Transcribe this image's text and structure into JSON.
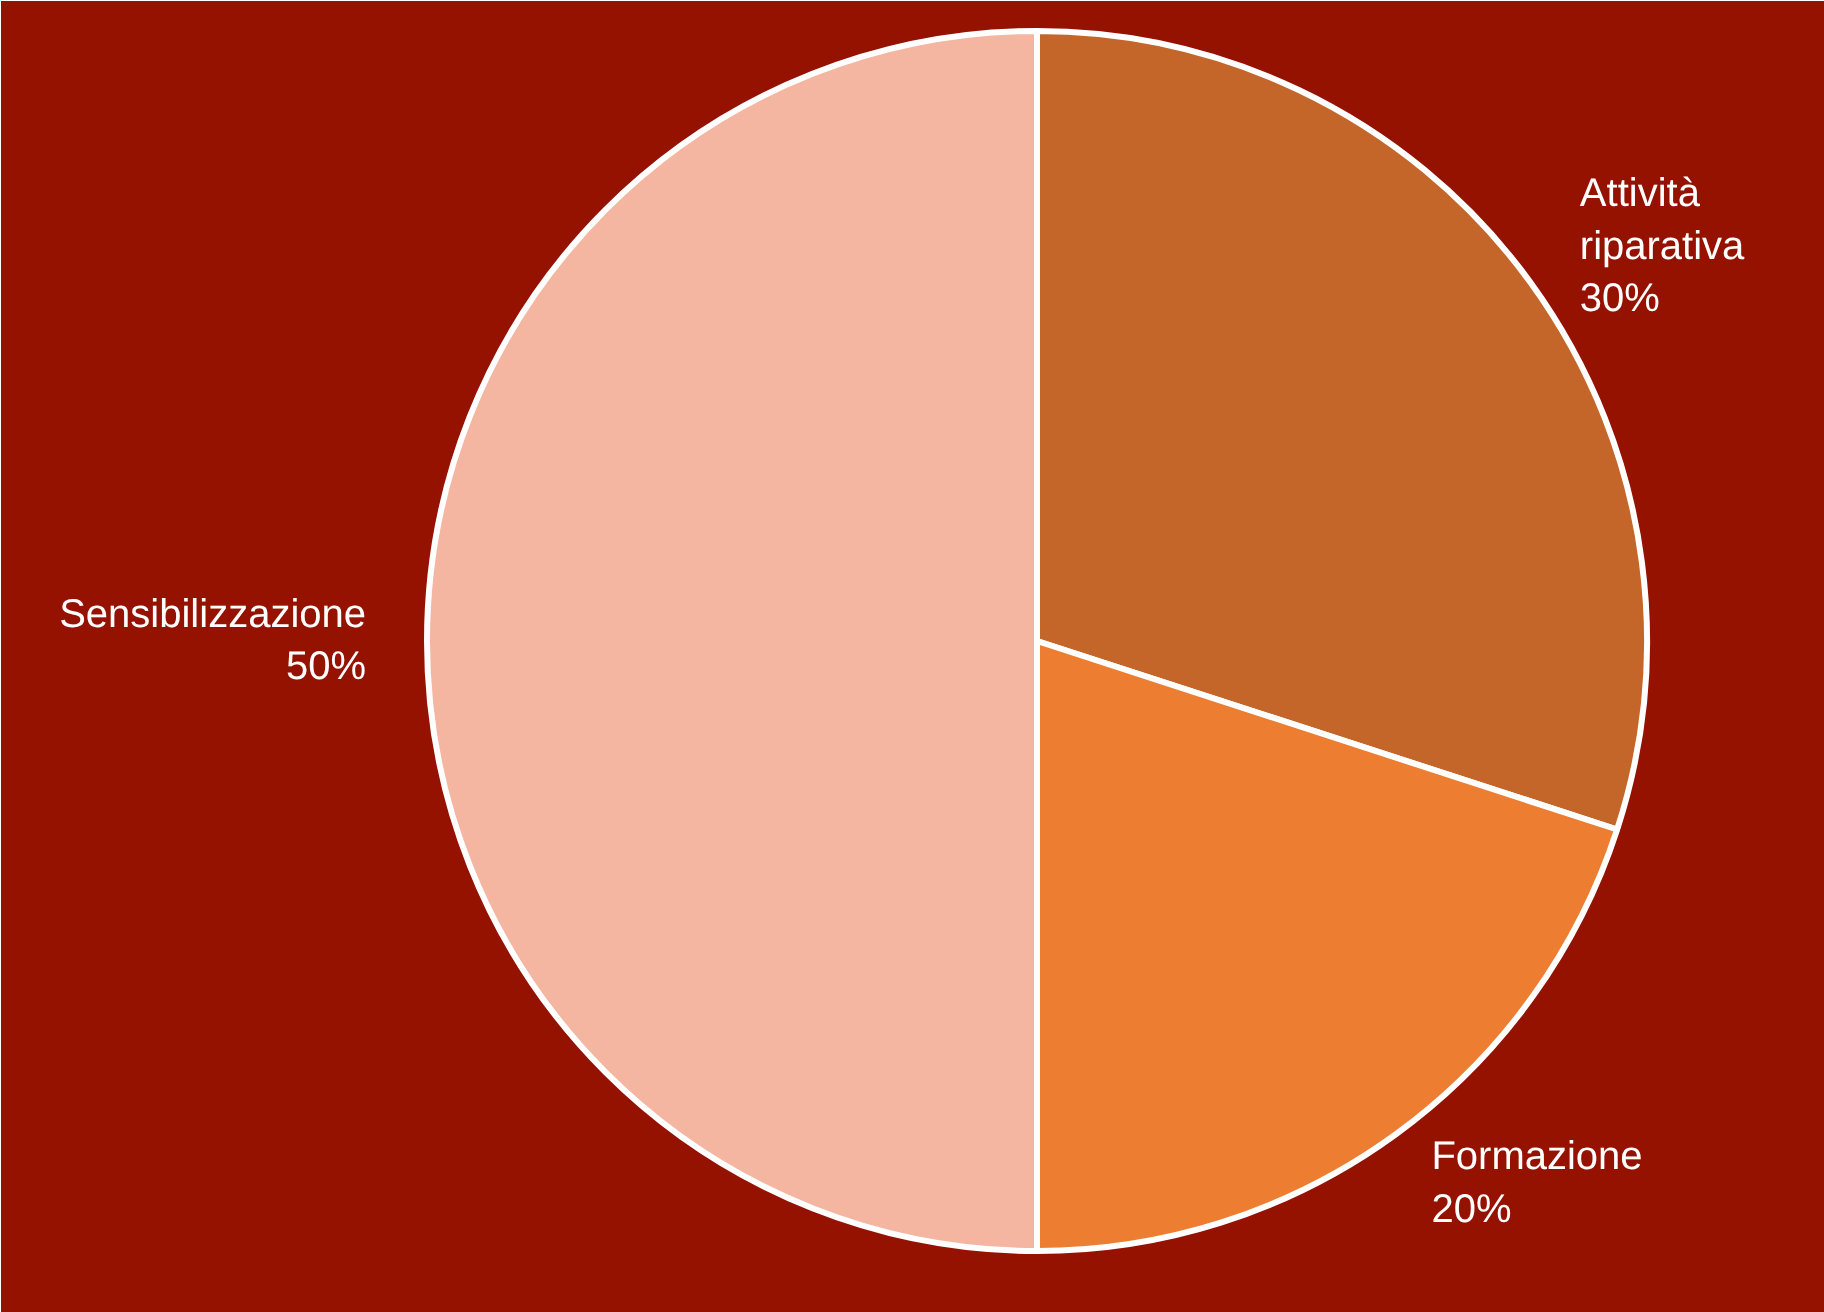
{
  "chart_data": {
    "type": "pie",
    "categories": [
      "Attività riparativa",
      "Formazione",
      "Sensibilizzazione"
    ],
    "values": [
      30,
      20,
      50
    ],
    "colors": [
      "#c4662a",
      "#ed7d31",
      "#f4b6a0"
    ],
    "value_labels": [
      "30%",
      "20%",
      "50%"
    ]
  }
}
